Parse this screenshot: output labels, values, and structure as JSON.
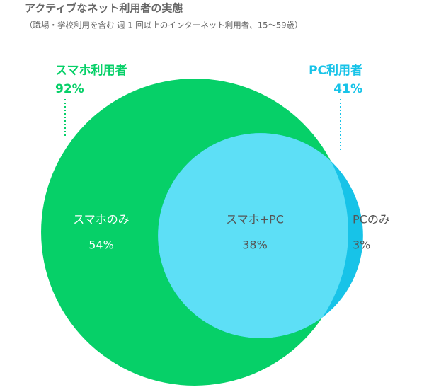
{
  "chart_data": {
    "type": "venn",
    "title": "アクティブなネット利用者の実態",
    "subtitle": "（職場・学校利用を含む 週 1 回以上のインターネット利用者、15〜59歳）",
    "sets": {
      "names": [
        "スマホ利用者",
        "PC利用者"
      ],
      "values": [
        92,
        41
      ],
      "value_labels": [
        "92%",
        "41%"
      ],
      "colors": [
        "#06d068",
        "#17c3e8"
      ]
    },
    "regions": {
      "names": [
        "スマホのみ",
        "スマホ+PC",
        "PCのみ"
      ],
      "values": [
        54,
        38,
        3
      ],
      "value_labels": [
        "54%",
        "38%",
        "3%"
      ],
      "overlap_color": "#5ddff6"
    }
  }
}
